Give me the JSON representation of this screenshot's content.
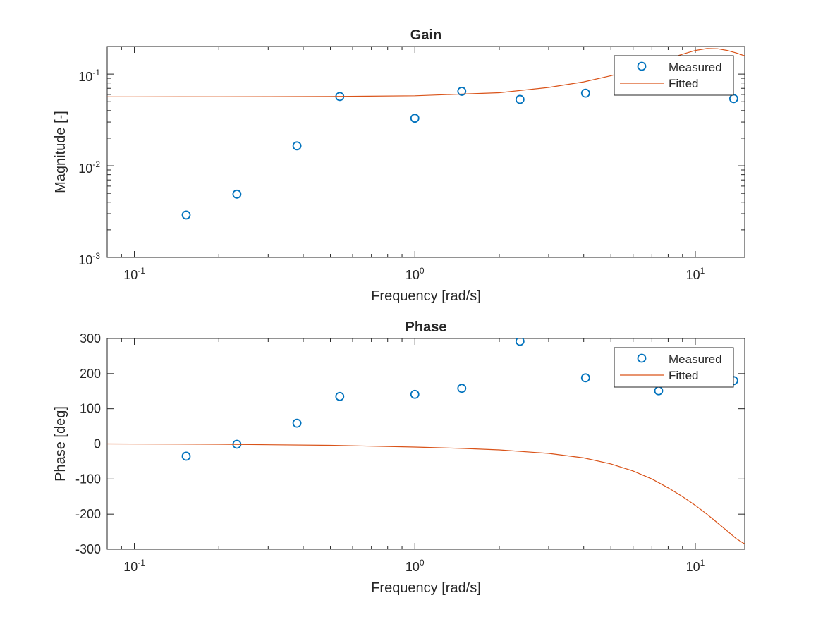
{
  "colors": {
    "measured": "#0072BD",
    "fitted": "#D95319",
    "axis": "#262626",
    "background": "#ffffff"
  },
  "chart_data": [
    {
      "type": "scatter",
      "title": "Gain",
      "xlabel": "Frequency [rad/s]",
      "ylabel": "Magnitude [-]",
      "xscale": "log",
      "yscale": "log",
      "xlim": [
        0.08,
        15
      ],
      "ylim": [
        0.001,
        0.2
      ],
      "xticks": [
        {
          "base": "10",
          "exp": "-1"
        },
        {
          "base": "10",
          "exp": "0"
        },
        {
          "base": "10",
          "exp": "1"
        }
      ],
      "yticks": [
        {
          "base": "10",
          "exp": "-3"
        },
        {
          "base": "10",
          "exp": "-2"
        },
        {
          "base": "10",
          "exp": "-1"
        }
      ],
      "grid": false,
      "legend": {
        "position": "top-right",
        "entries": [
          "Measured",
          "Fitted"
        ]
      },
      "series": [
        {
          "name": "Measured",
          "style": "markers",
          "x": [
            0.153,
            0.232,
            0.38,
            0.54,
            1.0,
            1.47,
            2.37,
            4.06,
            7.4,
            13.7
          ],
          "y": [
            0.0029,
            0.0049,
            0.0165,
            0.057,
            0.033,
            0.065,
            0.053,
            0.062,
            0.085,
            0.054
          ]
        },
        {
          "name": "Fitted",
          "style": "line",
          "x": [
            0.08,
            0.1,
            0.2,
            0.5,
            1.0,
            2.0,
            3.0,
            4.0,
            5.0,
            6.0,
            7.0,
            8.0,
            9.0,
            10.0,
            11.0,
            12.0,
            13.0,
            14.0,
            15.0
          ],
          "y": [
            0.0565,
            0.0565,
            0.0566,
            0.0569,
            0.0581,
            0.0627,
            0.0715,
            0.0823,
            0.096,
            0.112,
            0.128,
            0.147,
            0.165,
            0.181,
            0.19,
            0.189,
            0.181,
            0.17,
            0.158
          ]
        }
      ]
    },
    {
      "type": "scatter",
      "title": "Phase",
      "xlabel": "Frequency [rad/s]",
      "ylabel": "Phase [deg]",
      "xscale": "log",
      "yscale": "linear",
      "xlim": [
        0.08,
        15
      ],
      "ylim": [
        -300,
        300
      ],
      "xticks": [
        {
          "base": "10",
          "exp": "-1"
        },
        {
          "base": "10",
          "exp": "0"
        },
        {
          "base": "10",
          "exp": "1"
        }
      ],
      "yticks": [
        "-300",
        "-200",
        "-100",
        "0",
        "100",
        "200",
        "300"
      ],
      "grid": false,
      "legend": {
        "position": "top-right",
        "entries": [
          "Measured",
          "Fitted"
        ]
      },
      "series": [
        {
          "name": "Measured",
          "style": "markers",
          "x": [
            0.153,
            0.232,
            0.38,
            0.54,
            1.0,
            1.47,
            2.37,
            4.06,
            7.4,
            13.7
          ],
          "y": [
            -35,
            -1,
            59,
            135,
            141,
            158,
            292,
            188,
            151,
            180
          ]
        },
        {
          "name": "Fitted",
          "style": "line",
          "x": [
            0.08,
            0.2,
            0.5,
            1.0,
            1.5,
            2.0,
            3.0,
            4.0,
            5.0,
            6.0,
            7.0,
            8.0,
            9.0,
            10.0,
            11.0,
            12.0,
            13.0,
            14.0,
            15.0
          ],
          "y": [
            0,
            -1,
            -4,
            -9,
            -13,
            -17,
            -27,
            -40,
            -57,
            -77,
            -100,
            -125,
            -150,
            -175,
            -200,
            -225,
            -248,
            -270,
            -285
          ]
        }
      ]
    }
  ]
}
